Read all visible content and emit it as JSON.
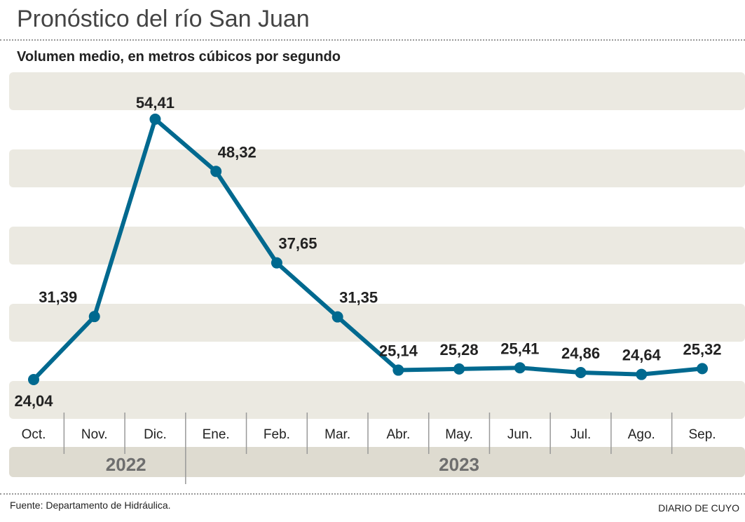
{
  "title": "Pronóstico del río San Juan",
  "subtitle": "Volumen medio, en metros cúbicos por segundo",
  "source": "Fuente: Departamento de Hidráulica.",
  "brand": "DIARIO DE CUYO",
  "colors": {
    "line": "#00698f",
    "band": "#ebe9e1",
    "year_band": "#dedbd0",
    "year_text": "#6e6e6e"
  },
  "chart_data": {
    "type": "line",
    "title": "Pronóstico del río San Juan",
    "ylabel": "Volumen medio, en metros cúbicos por segundo",
    "categories": [
      "Oct.",
      "Nov.",
      "Dic.",
      "Ene.",
      "Feb.",
      "Mar.",
      "Abr.",
      "May.",
      "Jun.",
      "Jul.",
      "Ago.",
      "Sep."
    ],
    "values": [
      24.04,
      31.39,
      54.41,
      48.32,
      37.65,
      31.35,
      25.14,
      25.28,
      25.41,
      24.86,
      24.64,
      25.32
    ],
    "labels": [
      "24,04",
      "31,39",
      "54,41",
      "48,32",
      "37,65",
      "31,35",
      "25,14",
      "25,28",
      "25,41",
      "24,86",
      "24,64",
      "25,32"
    ],
    "years": [
      {
        "label": "2022",
        "start": 0,
        "end": 2
      },
      {
        "label": "2023",
        "start": 3,
        "end": 11
      }
    ],
    "grid": "bands"
  }
}
